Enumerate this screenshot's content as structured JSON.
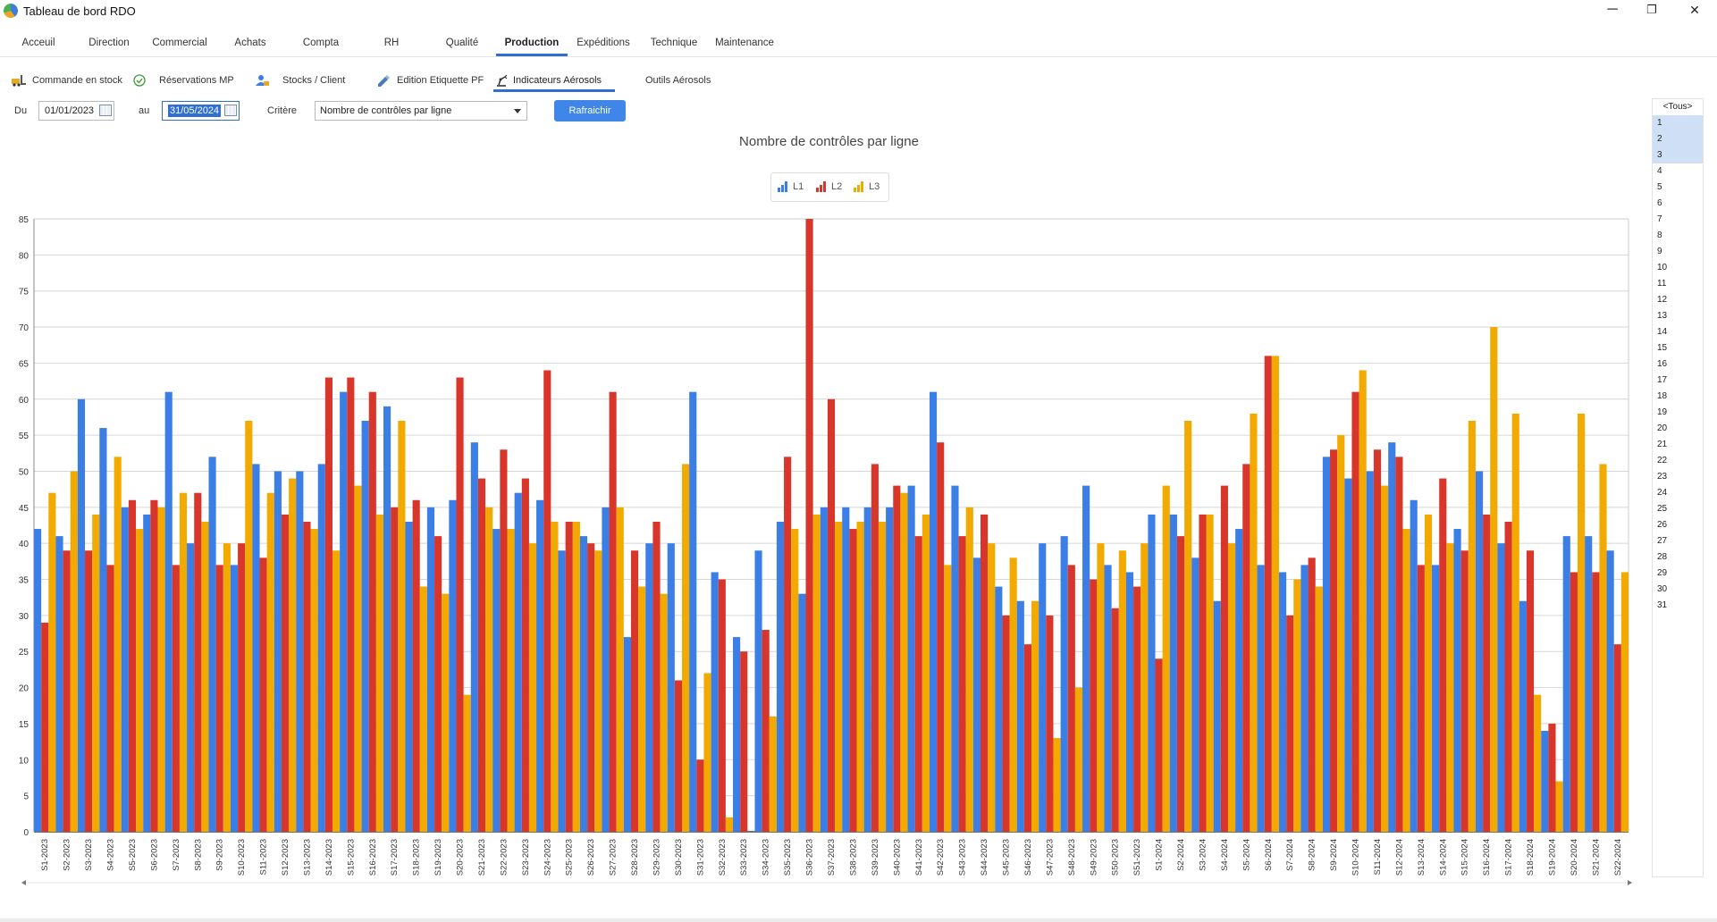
{
  "window": {
    "title": "Tableau de bord RDO",
    "minimize": "─",
    "maximize": "❐",
    "close": "✕"
  },
  "main_tabs": [
    "Acceuil",
    "Direction",
    "Commercial",
    "Achats",
    "Compta",
    "RH",
    "Qualité",
    "Production",
    "Expéditions",
    "Technique",
    "Maintenance"
  ],
  "main_tab_active": "Production",
  "sub_tabs": [
    {
      "label": "Commande en stock",
      "icon": "forklift-icon"
    },
    {
      "label": "Réservations MP",
      "icon": "check-circle-icon"
    },
    {
      "label": "Stocks / Client",
      "icon": "person-box-icon"
    },
    {
      "label": "Edition Etiquette PF",
      "icon": "tag-pencil-icon"
    },
    {
      "label": "Indicateurs Aérosols",
      "icon": "robot-arm-icon"
    },
    {
      "label": "Outils Aérosols",
      "icon": ""
    }
  ],
  "sub_tab_active": "Indicateurs Aérosols",
  "filters": {
    "from_label": "Du",
    "from_value": "01/01/2023",
    "to_label": "au",
    "to_value": "31/05/2024",
    "criteria_label": "Critère",
    "criteria_value": "Nombre de contrôles par ligne",
    "refresh_label": "Rafraichir"
  },
  "side_list": {
    "all_label": "<Tous>",
    "items": [
      "1",
      "2",
      "3",
      "4",
      "5",
      "6",
      "7",
      "8",
      "9",
      "10",
      "11",
      "12",
      "13",
      "14",
      "15",
      "16",
      "17",
      "18",
      "19",
      "20",
      "21",
      "22",
      "23",
      "24",
      "25",
      "26",
      "27",
      "28",
      "29",
      "30",
      "31"
    ],
    "selected": [
      "1",
      "2",
      "3"
    ]
  },
  "colors": {
    "L1": "#3b7ee6",
    "L2": "#d9362b",
    "L3": "#f2a900",
    "accent": "#2f6fd1"
  },
  "chart_data": {
    "type": "bar",
    "title": "Nombre de contrôles par ligne",
    "ylim": [
      0,
      85
    ],
    "yticks": [
      0,
      5,
      10,
      15,
      20,
      25,
      30,
      35,
      40,
      45,
      50,
      55,
      60,
      65,
      70,
      75,
      80,
      85
    ],
    "grid": true,
    "legend_position": "top-center",
    "categories": [
      "S1-2023",
      "S2-2023",
      "S3-2023",
      "S4-2023",
      "S5-2023",
      "S6-2023",
      "S7-2023",
      "S8-2023",
      "S9-2023",
      "S10-2023",
      "S11-2023",
      "S12-2023",
      "S13-2023",
      "S14-2023",
      "S15-2023",
      "S16-2023",
      "S17-2023",
      "S18-2023",
      "S19-2023",
      "S20-2023",
      "S21-2023",
      "S22-2023",
      "S23-2023",
      "S24-2023",
      "S25-2023",
      "S26-2023",
      "S27-2023",
      "S28-2023",
      "S29-2023",
      "S30-2023",
      "S31-2023",
      "S32-2023",
      "S33-2023",
      "S34-2023",
      "S35-2023",
      "S36-2023",
      "S37-2023",
      "S38-2023",
      "S39-2023",
      "S40-2023",
      "S41-2023",
      "S42-2023",
      "S43-2023",
      "S44-2023",
      "S45-2023",
      "S46-2023",
      "S47-2023",
      "S48-2023",
      "S49-2023",
      "S50-2023",
      "S51-2023",
      "S1-2024",
      "S2-2024",
      "S3-2024",
      "S4-2024",
      "S5-2024",
      "S6-2024",
      "S7-2024",
      "S8-2024",
      "S9-2024",
      "S10-2024",
      "S11-2024",
      "S12-2024",
      "S13-2024",
      "S14-2024",
      "S15-2024",
      "S16-2024",
      "S17-2024",
      "S18-2024",
      "S19-2024",
      "S20-2024",
      "S21-2024",
      "S22-2024"
    ],
    "series": [
      {
        "name": "L1",
        "values": [
          42,
          41,
          60,
          56,
          45,
          44,
          61,
          40,
          52,
          37,
          51,
          50,
          50,
          51,
          61,
          57,
          59,
          43,
          45,
          46,
          54,
          42,
          47,
          46,
          39,
          41,
          45,
          27,
          40,
          40,
          61,
          36,
          27,
          39,
          43,
          33,
          45,
          45,
          45,
          45,
          48,
          61,
          48,
          38,
          34,
          32,
          40,
          41,
          48,
          37,
          36,
          44,
          44,
          38,
          32,
          42,
          37,
          36,
          37,
          52,
          49,
          50,
          54,
          46,
          37,
          42,
          50,
          40,
          32,
          14,
          41,
          41,
          39
        ]
      },
      {
        "name": "L2",
        "values": [
          29,
          39,
          39,
          37,
          46,
          46,
          37,
          47,
          37,
          40,
          38,
          44,
          43,
          63,
          63,
          61,
          45,
          46,
          41,
          63,
          49,
          53,
          49,
          64,
          43,
          40,
          61,
          39,
          43,
          21,
          10,
          35,
          25,
          28,
          52,
          85,
          60,
          42,
          51,
          48,
          41,
          54,
          41,
          44,
          30,
          26,
          30,
          37,
          35,
          31,
          34,
          24,
          41,
          44,
          48,
          51,
          66,
          30,
          38,
          53,
          61,
          53,
          52,
          37,
          49,
          39,
          44,
          43,
          39,
          15,
          36,
          36,
          26
        ]
      },
      {
        "name": "L3",
        "values": [
          47,
          50,
          44,
          52,
          42,
          45,
          47,
          43,
          40,
          57,
          47,
          49,
          42,
          39,
          48,
          44,
          57,
          34,
          33,
          19,
          45,
          42,
          40,
          43,
          43,
          39,
          45,
          34,
          33,
          51,
          22,
          2,
          0,
          16,
          42,
          44,
          43,
          43,
          43,
          47,
          44,
          37,
          45,
          40,
          38,
          32,
          13,
          20,
          40,
          39,
          40,
          48,
          57,
          44,
          40,
          58,
          66,
          35,
          34,
          55,
          64,
          48,
          42,
          44,
          40,
          57,
          70,
          58,
          19,
          7,
          58,
          51,
          36
        ]
      }
    ]
  }
}
